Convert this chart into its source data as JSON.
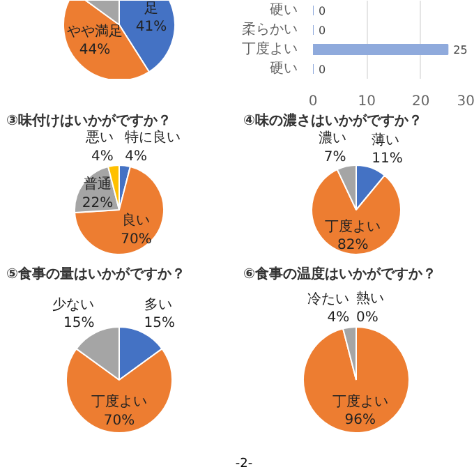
{
  "chart_data": [
    {
      "type": "pie",
      "categories": [
        "足",
        "やや満足",
        null
      ],
      "values": [
        41,
        44,
        15
      ],
      "value_labels": [
        "41%",
        "44%",
        null
      ],
      "colors": [
        "#4472c4",
        "#ed7d31",
        "#a5a5a5"
      ]
    },
    {
      "type": "bar",
      "orientation": "horizontal",
      "categories": [
        "硬い",
        "柔らかい",
        "丁度よい",
        "硬い"
      ],
      "values": [
        0,
        0,
        25,
        0
      ],
      "color": "#8faadc",
      "xlim": [
        0,
        30
      ],
      "xticks": [
        0,
        10,
        20,
        30
      ],
      "grid": "x",
      "data_labels": true
    },
    {
      "type": "pie",
      "title": "③味付けはいかがですか？",
      "categories": [
        "特に良い",
        "良い",
        "普通",
        "悪い"
      ],
      "values": [
        4,
        70,
        22,
        4
      ],
      "value_labels": [
        "4%",
        "70%",
        "22%",
        "4%"
      ],
      "colors": [
        "#4472c4",
        "#ed7d31",
        "#a5a5a5",
        "#ffc000"
      ]
    },
    {
      "type": "pie",
      "title": "④味の濃さはいかがですか？",
      "categories": [
        "薄い",
        "丁度よい",
        "濃い"
      ],
      "values": [
        11,
        82,
        7
      ],
      "value_labels": [
        "11%",
        "82%",
        "7%"
      ],
      "colors": [
        "#4472c4",
        "#ed7d31",
        "#a5a5a5"
      ]
    },
    {
      "type": "pie",
      "title": "⑤食事の量はいかがですか？",
      "categories": [
        "多い",
        "丁度よい",
        "少ない"
      ],
      "values": [
        15,
        70,
        15
      ],
      "value_labels": [
        "15%",
        "70%",
        "15%"
      ],
      "colors": [
        "#4472c4",
        "#ed7d31",
        "#a5a5a5"
      ]
    },
    {
      "type": "pie",
      "title": "⑥食事の温度はいかがですか？",
      "categories": [
        "熱い",
        "丁度よい",
        "冷たい"
      ],
      "values": [
        0,
        96,
        4
      ],
      "value_labels": [
        "0%",
        "96%",
        "4%"
      ],
      "colors": [
        "#4472c4",
        "#ed7d31",
        "#a5a5a5"
      ],
      "annotations": [
        "-2-"
      ]
    }
  ]
}
